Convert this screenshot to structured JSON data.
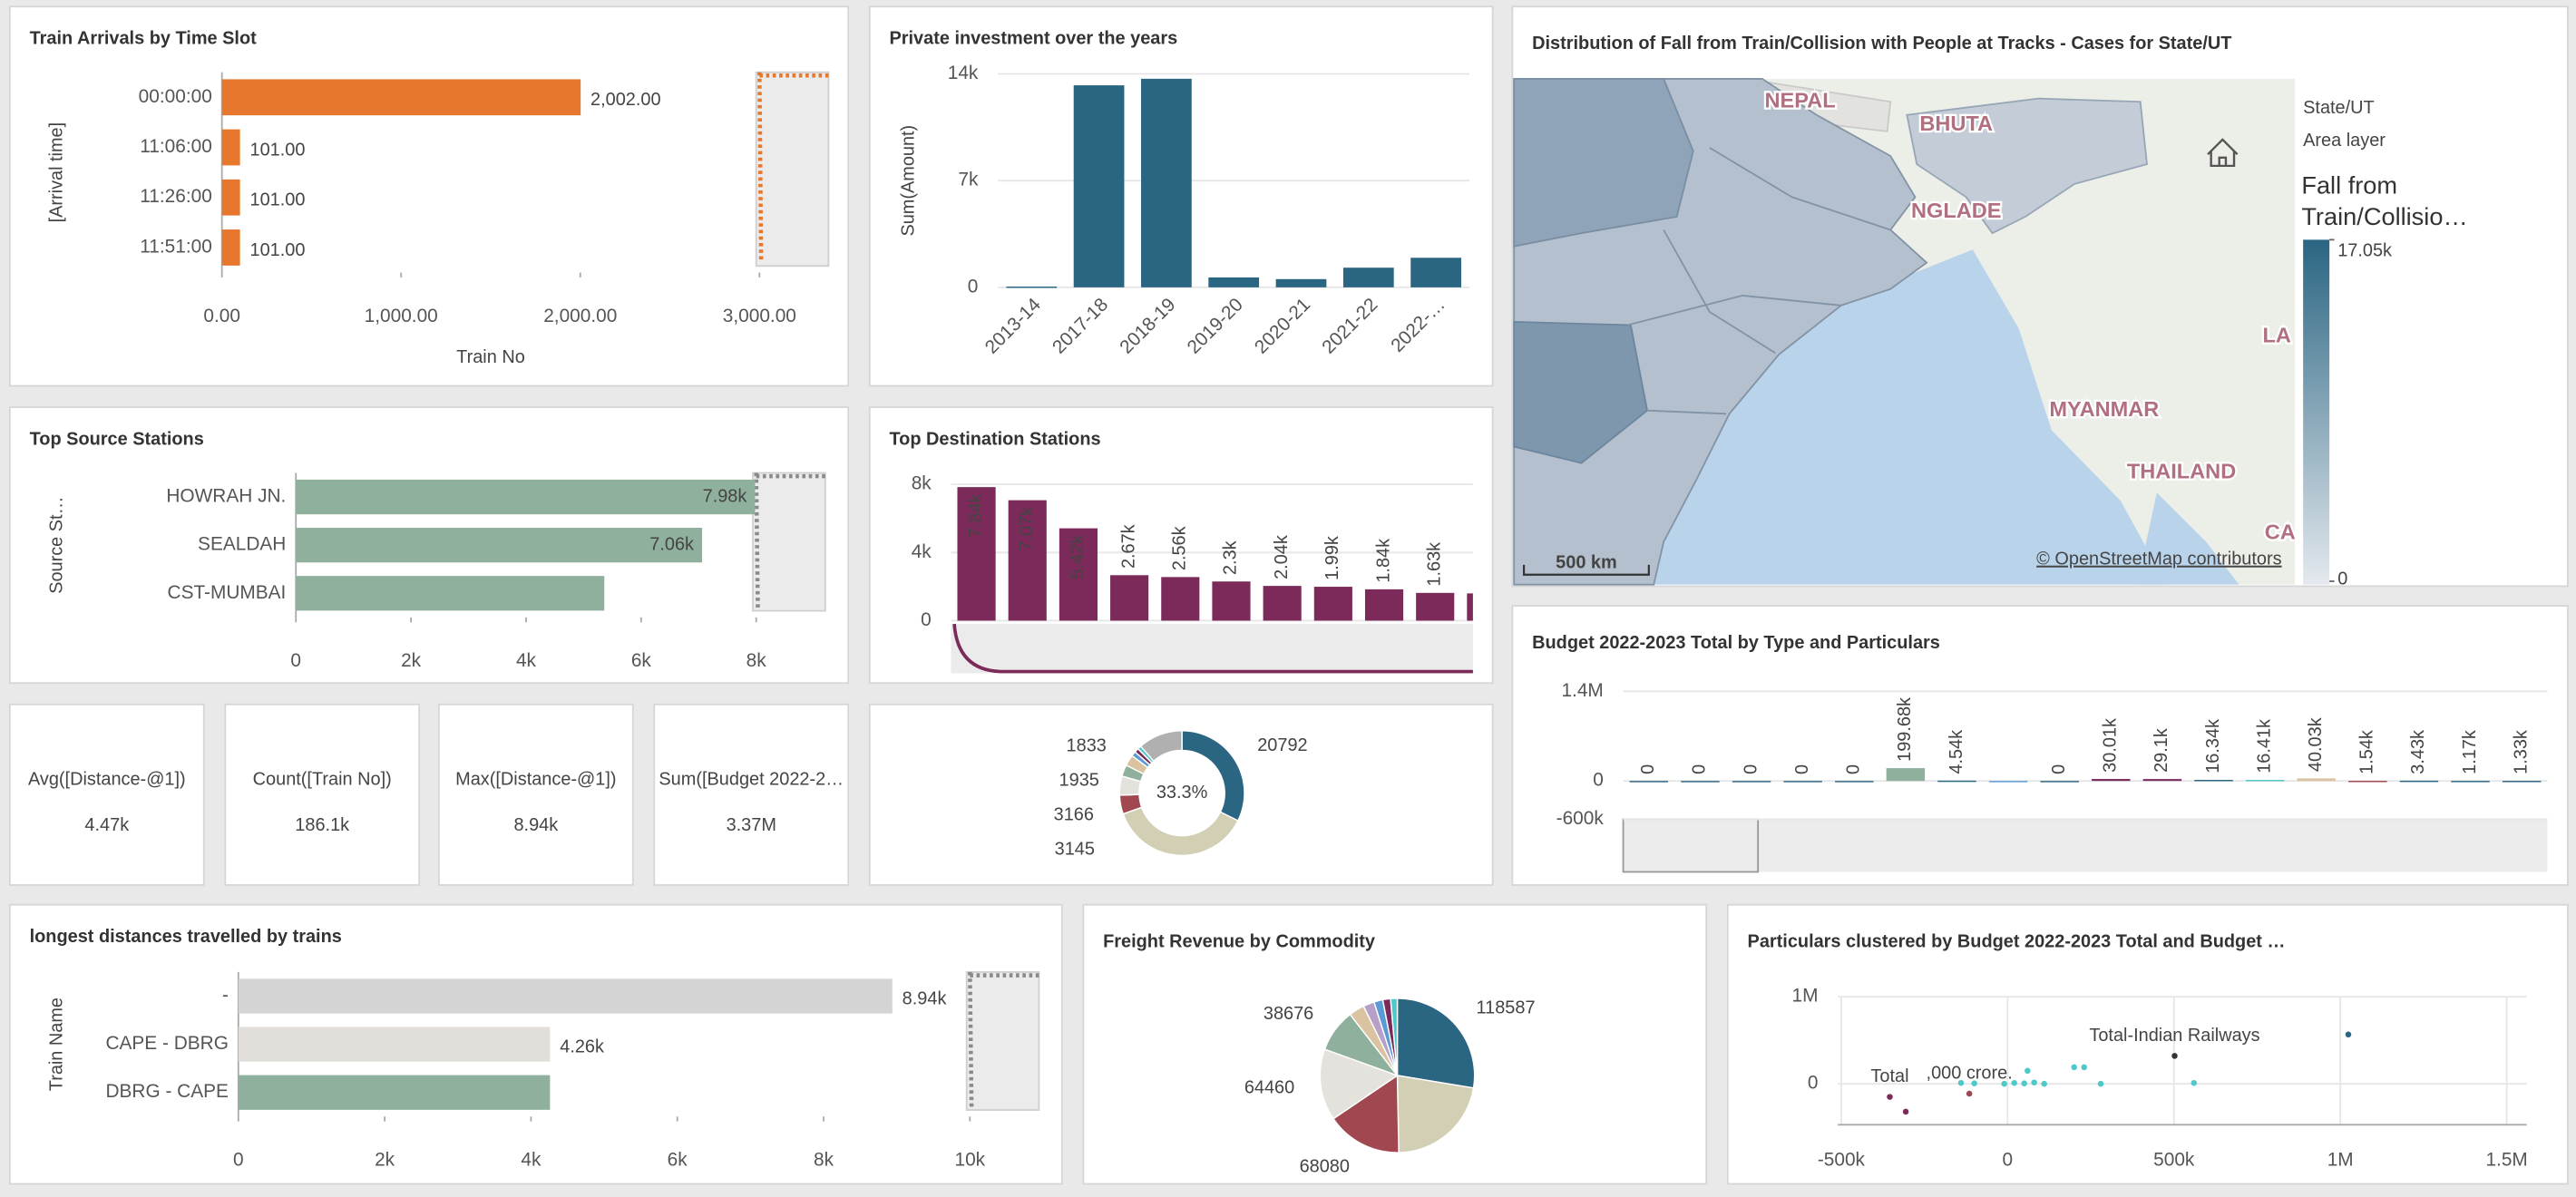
{
  "chart_data": [
    {
      "type": "hbar",
      "title": "Train Arrivals by Time Slot",
      "categories": [
        "00:00:00",
        "11:06:00",
        "11:26:00",
        "11:51:00"
      ],
      "values": [
        2002,
        101,
        101,
        101
      ],
      "value_labels": [
        "2,002.00",
        "101.00",
        "101.00",
        "101.00"
      ],
      "value_label_position": "outside",
      "color": "#e8772e",
      "xlim": [
        0,
        3000
      ],
      "xticks": [
        {
          "value": 0,
          "label": "0.00"
        },
        {
          "value": 1000,
          "label": "1,000.00"
        },
        {
          "value": 2000,
          "label": "2,000.00"
        },
        {
          "value": 3000,
          "label": "3,000.00"
        }
      ],
      "xlabel": "Train No",
      "ylabel": "[Arrival time]"
    },
    {
      "type": "bar",
      "title": "Private investment over the years",
      "categories": [
        "2013-14",
        "2017-18",
        "2018-19",
        "2019-20",
        "2020-21",
        "2021-22",
        "2022-…"
      ],
      "values": [
        50,
        13250,
        13680,
        650,
        540,
        1290,
        1940
      ],
      "color": "#2a6582",
      "ylim": [
        0,
        14000
      ],
      "yticks": [
        0,
        {
          "value": 7000,
          "label": "7k"
        },
        {
          "value": 14000,
          "label": "14k"
        }
      ],
      "ylabel": "Sum(Amount)",
      "grid": true
    },
    {
      "type": "map",
      "title": "Distribution of Fall from Train/Collision with People at Tracks - Cases for State/UT",
      "legend_title": "State/UT",
      "legend_subtitle": "Area layer",
      "color_title": "Fall from Train/Collisio…",
      "color_ticks": [
        {
          "value": 17050,
          "label": "17.05k"
        },
        0
      ],
      "color": "#2a6582",
      "place_labels": [
        "NEPAL",
        "BHUTA",
        "NGLADE",
        "MYANMAR",
        "THAILAND",
        "LA",
        "CA"
      ],
      "scale_label": "500 km",
      "attribution": "© OpenStreetMap contributors"
    },
    {
      "type": "hbar",
      "title": "Top Source Stations",
      "categories": [
        "HOWRAH JN.",
        "SEALDAH",
        "CST-MUMBAI"
      ],
      "values": [
        7980,
        7060,
        5360
      ],
      "value_labels": [
        "7.98k",
        "7.06k",
        null
      ],
      "value_label_position": "inside",
      "color": "#8fb09d",
      "xlim": [
        0,
        8000
      ],
      "xticks": [
        0,
        {
          "value": 2000,
          "label": "2k"
        },
        {
          "value": 4000,
          "label": "4k"
        },
        {
          "value": 6000,
          "label": "6k"
        },
        {
          "value": 8000,
          "label": "8k"
        }
      ],
      "ylabel": "Source St…"
    },
    {
      "type": "bar",
      "title": "Top Destination Stations",
      "values": [
        7840,
        7070,
        5420,
        2670,
        2560,
        2300,
        2040,
        1990,
        1840,
        1630,
        1600
      ],
      "value_labels": [
        "7.84k",
        "7.07k",
        "5.42k",
        "2.67k",
        "2.56k",
        "2.3k",
        "2.04k",
        "1.99k",
        "1.84k",
        "1.63k",
        null
      ],
      "value_label_position": "auto",
      "color": "#7b2a5a",
      "ylim": [
        0,
        8000
      ],
      "yticks": [
        0,
        {
          "value": 4000,
          "label": "4k"
        },
        {
          "value": 8000,
          "label": "8k"
        }
      ],
      "grid": true
    },
    {
      "type": "kpi",
      "title": "Avg([Distance-@1])",
      "value": 4470,
      "value_label": "4.47k",
      "color": "#2a6582"
    },
    {
      "type": "kpi",
      "title": "Count([Train No])",
      "value": 186100,
      "value_label": "186.1k",
      "color": "#2a6582"
    },
    {
      "type": "kpi",
      "title": "Max([Distance-@1])",
      "value": 8940,
      "value_label": "8.94k",
      "color": "#2a6582"
    },
    {
      "type": "kpi",
      "title": "Sum([Budget 2022-2…",
      "value": 3370000,
      "value_label": "3.37M",
      "color": "#2a6582"
    },
    {
      "type": "donut",
      "center_label": "33.3%",
      "values": [
        20792,
        24000,
        3145,
        3166,
        1935,
        1833,
        800,
        700,
        600,
        7400
      ],
      "show_labels": [
        true,
        false,
        true,
        true,
        true,
        true,
        false,
        false,
        false,
        false
      ],
      "colors": [
        "#2a6582",
        "#d3cfb4",
        "#a0474f",
        "#e4e2dc",
        "#8fb09d",
        "#d9c3a0",
        "#5b9bd5",
        "#7b2a5a",
        "#4ec9c9",
        "#b0b0b0"
      ]
    },
    {
      "type": "hbar",
      "title": "longest distances travelled by trains",
      "categories": [
        "-",
        "CAPE - DBRG",
        "DBRG - CAPE"
      ],
      "values": [
        8940,
        4260,
        4260
      ],
      "value_labels": [
        "8.94k",
        "4.26k",
        null
      ],
      "value_label_position": "outside",
      "colors": [
        "#d4d4d4",
        "#e2dfda",
        "#8fb09d"
      ],
      "xlim": [
        0,
        10000
      ],
      "xticks": [
        0,
        {
          "value": 2000,
          "label": "2k"
        },
        {
          "value": 4000,
          "label": "4k"
        },
        {
          "value": 6000,
          "label": "6k"
        },
        {
          "value": 8000,
          "label": "8k"
        },
        {
          "value": 10000,
          "label": "10k"
        }
      ],
      "ylabel": "Train Name"
    },
    {
      "type": "pie",
      "title": "Freight Revenue by Commodity",
      "values": [
        118587,
        95000,
        68080,
        64460,
        38676,
        14000,
        10000,
        8000,
        7000,
        6000
      ],
      "show_labels": [
        true,
        false,
        true,
        true,
        true,
        false,
        false,
        false,
        false,
        false
      ],
      "colors": [
        "#2a6582",
        "#d3cfb4",
        "#a0474f",
        "#e4e2dc",
        "#8fb09d",
        "#d9c3a0",
        "#b7a0c8",
        "#5b9bd5",
        "#7b2a5a",
        "#4ec9c9"
      ]
    },
    {
      "type": "bar",
      "title": "Budget 2022-2023 Total by Type and Particulars",
      "values": [
        0,
        0,
        0,
        0,
        0,
        199680,
        4540,
        -6000,
        0,
        30010,
        29100,
        16340,
        16410,
        40030,
        1540,
        3430,
        1170,
        1330
      ],
      "value_labels": [
        "0",
        "0",
        "0",
        "0",
        "0",
        "199.68k",
        "4.54k",
        null,
        "0",
        "30.01k",
        "29.1k",
        "16.34k",
        "16.41k",
        "40.03k",
        "1.54k",
        "3.43k",
        "1.17k",
        "1.33k"
      ],
      "value_label_position": "above-zero",
      "colors": [
        "#2a6582",
        "#2a6582",
        "#2a6582",
        "#2a6582",
        "#2a6582",
        "#8fb09d",
        "#2a6582",
        "#5b9bd5",
        "#2a6582",
        "#7b2a5a",
        "#7b2a5a",
        "#2a6582",
        "#4ec9c9",
        "#d9c3a0",
        "#a0474f",
        "#2a6582",
        "#2a6582",
        "#2a6582"
      ],
      "ylim": [
        -600000,
        1400000
      ],
      "yticks": [
        {
          "value": 1400000,
          "label": "1.4M"
        },
        0,
        {
          "value": -600000,
          "label": "-600k"
        }
      ],
      "grid": true
    },
    {
      "type": "scatter",
      "title": "Particulars clustered by Budget 2022-2023 Total and Budget …",
      "x": [
        1024000,
        502000,
        -354000,
        -306000,
        -115000,
        -140000,
        -100000,
        -10000,
        20000,
        50000,
        80000,
        110000,
        60000,
        200000,
        230000,
        280000,
        560000
      ],
      "values": [
        566000,
        320000,
        -150000,
        -320000,
        -113000,
        10000,
        5000,
        0,
        10000,
        5000,
        15000,
        0,
        150000,
        190000,
        190000,
        0,
        10000
      ],
      "colors": [
        "#2a6582",
        "#333333",
        "#7b2a5a",
        "#7b2a5a",
        "#a0474f",
        "#4ec9c9",
        "#4ec9c9",
        "#4ec9c9",
        "#4ec9c9",
        "#4ec9c9",
        "#4ec9c9",
        "#4ec9c9",
        "#4ec9c9",
        "#4ec9c9",
        "#4ec9c9",
        "#4ec9c9",
        "#4ec9c9"
      ],
      "point_labels": [
        null,
        "Total-Indian Railways",
        "Total",
        null,
        ",000 crore.",
        null,
        null,
        null,
        null,
        null,
        null,
        null,
        null,
        null,
        null,
        null,
        null
      ],
      "xlim": [
        -510000,
        1560000
      ],
      "ylim": [
        -470000,
        1000000
      ],
      "xticks": [
        {
          "value": -500000,
          "label": "-500k"
        },
        0,
        {
          "value": 500000,
          "label": "500k"
        },
        {
          "value": 1000000,
          "label": "1M"
        },
        {
          "value": 1500000,
          "label": "1.5M"
        }
      ],
      "yticks": [
        0,
        {
          "value": 1000000,
          "label": "1M"
        }
      ],
      "grid": true
    }
  ]
}
